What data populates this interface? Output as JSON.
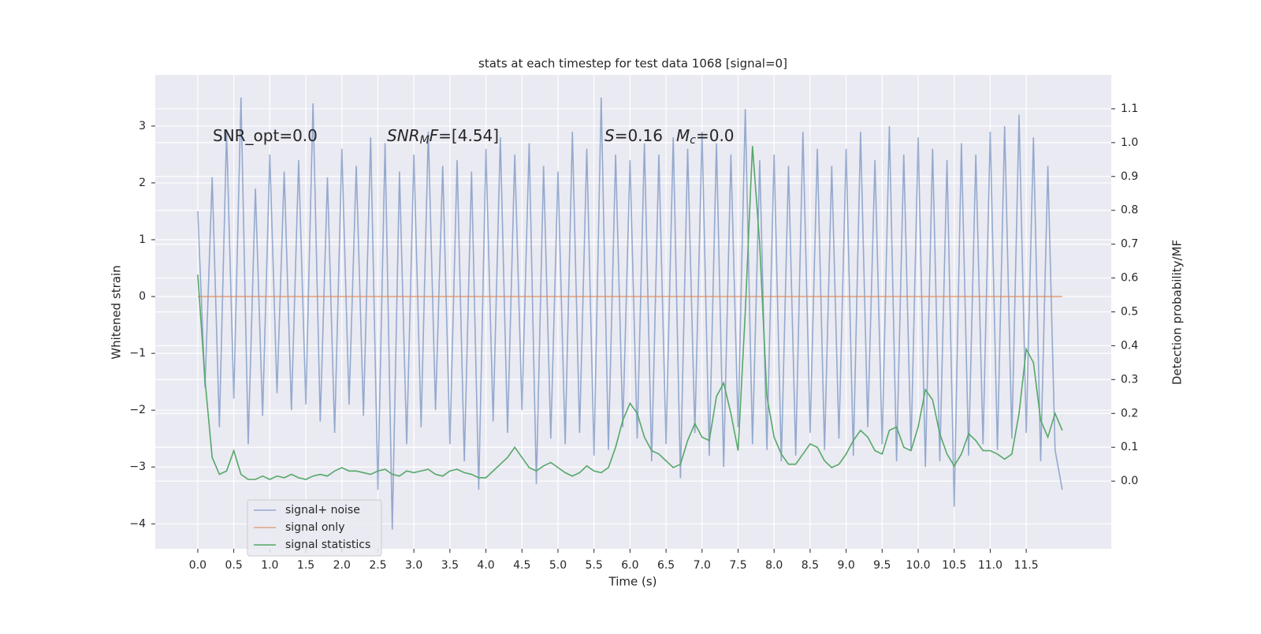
{
  "chart_data": {
    "type": "line",
    "title": "stats at each timestep for test data 1068 [signal=0]",
    "x_label": "Time (s)",
    "y_label": "Whitened strain",
    "y2_label": "Detection probability/MF",
    "annotations": [
      [
        {
          "text": "SNR_opt=0.0"
        }
      ],
      [
        {
          "text": "SNR",
          "italic": true
        },
        {
          "text": "M",
          "italic": true,
          "sub": true
        },
        {
          "text": "F",
          "italic": true
        },
        {
          "text": "=[4.54]"
        }
      ],
      [
        {
          "text": "S",
          "italic": true
        },
        {
          "text": "=0.16"
        }
      ],
      [
        {
          "text": "M",
          "italic": true
        },
        {
          "text": "c",
          "italic": true,
          "sub": true
        },
        {
          "text": "=0.0"
        }
      ]
    ],
    "x": [
      0,
      0.1,
      0.2,
      0.3,
      0.4,
      0.5,
      0.6,
      0.7,
      0.8,
      0.9,
      1,
      1.1,
      1.2,
      1.3,
      1.4,
      1.5,
      1.6,
      1.7,
      1.8,
      1.9,
      2,
      2.1,
      2.2,
      2.3,
      2.4,
      2.5,
      2.6,
      2.7,
      2.8,
      2.9,
      3,
      3.1,
      3.2,
      3.3,
      3.4,
      3.5,
      3.6,
      3.7,
      3.8,
      3.9,
      4,
      4.1,
      4.2,
      4.3,
      4.4,
      4.5,
      4.6,
      4.7,
      4.8,
      4.9,
      5,
      5.1,
      5.2,
      5.3,
      5.4,
      5.5,
      5.6,
      5.7,
      5.8,
      5.9,
      6,
      6.1,
      6.2,
      6.3,
      6.4,
      6.5,
      6.6,
      6.7,
      6.8,
      6.9,
      7,
      7.1,
      7.2,
      7.3,
      7.4,
      7.5,
      7.6,
      7.7,
      7.8,
      7.9,
      8,
      8.1,
      8.2,
      8.3,
      8.4,
      8.5,
      8.6,
      8.7,
      8.8,
      8.9,
      9,
      9.1,
      9.2,
      9.3,
      9.4,
      9.5,
      9.6,
      9.7,
      9.8,
      9.9,
      10,
      10.1,
      10.2,
      10.3,
      10.4,
      10.5,
      10.6,
      10.7,
      10.8,
      10.9,
      11,
      11.1,
      11.2,
      11.3,
      11.4,
      11.5,
      11.6,
      11.7,
      11.8,
      11.9,
      12
    ],
    "series": [
      {
        "name": "signal+ noise",
        "color": "#4c72b0",
        "opacity": 0.55,
        "values": [
          1.5,
          -1.6,
          2.1,
          -2.3,
          2.9,
          -1.8,
          3.5,
          -2.6,
          1.9,
          -2.1,
          2.5,
          -1.7,
          2.2,
          -2.0,
          2.4,
          -1.9,
          3.4,
          -2.2,
          2.1,
          -2.4,
          2.6,
          -1.9,
          2.3,
          -2.1,
          2.8,
          -3.4,
          2.7,
          -4.1,
          2.2,
          -2.6,
          2.5,
          -2.3,
          2.9,
          -2.0,
          2.3,
          -2.6,
          2.4,
          -2.9,
          2.2,
          -3.4,
          2.6,
          -2.2,
          2.8,
          -2.4,
          2.5,
          -2.0,
          2.7,
          -3.3,
          2.3,
          -2.5,
          2.2,
          -2.6,
          2.9,
          -2.4,
          2.6,
          -2.8,
          3.5,
          -2.7,
          2.5,
          -2.3,
          2.4,
          -2.5,
          2.7,
          -2.9,
          2.5,
          -2.6,
          2.8,
          -3.2,
          2.6,
          -2.4,
          2.9,
          -2.8,
          2.7,
          -3.0,
          2.5,
          -2.3,
          3.3,
          -2.6,
          2.4,
          -2.7,
          2.5,
          -2.9,
          2.3,
          -2.8,
          2.9,
          -2.4,
          2.6,
          -2.7,
          2.3,
          -2.5,
          2.6,
          -2.8,
          2.9,
          -2.3,
          2.4,
          -2.6,
          3.0,
          -2.9,
          2.5,
          -2.7,
          2.8,
          -3.0,
          2.6,
          -2.9,
          2.4,
          -3.7,
          2.7,
          -2.8,
          2.5,
          -2.6,
          2.9,
          -2.7,
          3.0,
          -2.5,
          3.2,
          -2.4,
          2.8,
          -2.9,
          2.3,
          -2.7,
          -3.4
        ]
      },
      {
        "name": "signal only",
        "color": "#dd8452",
        "opacity": 0.7,
        "values": [
          0,
          0,
          0,
          0,
          0,
          0,
          0,
          0,
          0,
          0,
          0,
          0,
          0,
          0,
          0,
          0,
          0,
          0,
          0,
          0,
          0,
          0,
          0,
          0,
          0,
          0,
          0,
          0,
          0,
          0,
          0,
          0,
          0,
          0,
          0,
          0,
          0,
          0,
          0,
          0,
          0,
          0,
          0,
          0,
          0,
          0,
          0,
          0,
          0,
          0,
          0,
          0,
          0,
          0,
          0,
          0,
          0,
          0,
          0,
          0,
          0,
          0,
          0,
          0,
          0,
          0,
          0,
          0,
          0,
          0,
          0,
          0,
          0,
          0,
          0,
          0,
          0,
          0,
          0,
          0,
          0,
          0,
          0,
          0,
          0,
          0,
          0,
          0,
          0,
          0,
          0,
          0,
          0,
          0,
          0,
          0,
          0,
          0,
          0,
          0,
          0,
          0,
          0,
          0,
          0,
          0,
          0,
          0,
          0,
          0,
          0,
          0,
          0,
          0,
          0,
          0,
          0,
          0,
          0,
          0,
          0
        ]
      },
      {
        "name": "signal statistics",
        "color": "#55a868",
        "opacity": 1,
        "axis": "y2",
        "values": [
          0.61,
          0.3,
          0.07,
          0.02,
          0.03,
          0.09,
          0.02,
          0.005,
          0.005,
          0.015,
          0.005,
          0.015,
          0.01,
          0.02,
          0.01,
          0.005,
          0.015,
          0.02,
          0.015,
          0.03,
          0.04,
          0.03,
          0.03,
          0.025,
          0.02,
          0.03,
          0.035,
          0.02,
          0.015,
          0.03,
          0.025,
          0.03,
          0.035,
          0.02,
          0.015,
          0.03,
          0.035,
          0.025,
          0.02,
          0.01,
          0.01,
          0.03,
          0.05,
          0.07,
          0.1,
          0.07,
          0.04,
          0.03,
          0.045,
          0.055,
          0.04,
          0.025,
          0.015,
          0.025,
          0.045,
          0.03,
          0.025,
          0.04,
          0.1,
          0.18,
          0.23,
          0.2,
          0.13,
          0.09,
          0.08,
          0.06,
          0.04,
          0.05,
          0.12,
          0.17,
          0.13,
          0.12,
          0.25,
          0.29,
          0.2,
          0.09,
          0.5,
          0.99,
          0.7,
          0.25,
          0.13,
          0.08,
          0.05,
          0.05,
          0.08,
          0.11,
          0.1,
          0.06,
          0.04,
          0.05,
          0.08,
          0.12,
          0.15,
          0.13,
          0.09,
          0.08,
          0.15,
          0.16,
          0.1,
          0.09,
          0.16,
          0.27,
          0.24,
          0.14,
          0.08,
          0.045,
          0.08,
          0.14,
          0.12,
          0.09,
          0.09,
          0.08,
          0.065,
          0.08,
          0.2,
          0.39,
          0.35,
          0.18,
          0.13,
          0.2,
          0.15
        ]
      }
    ],
    "xlim": [
      -0.59,
      12.68
    ],
    "xticks": [
      {
        "value": 0,
        "label": "0.0"
      },
      0.5,
      {
        "value": 1,
        "label": "1.0"
      },
      1.5,
      {
        "value": 2,
        "label": "2.0"
      },
      2.5,
      {
        "value": 3,
        "label": "3.0"
      },
      3.5,
      {
        "value": 4,
        "label": "4.0"
      },
      4.5,
      {
        "value": 5,
        "label": "5.0"
      },
      5.5,
      {
        "value": 6,
        "label": "6.0"
      },
      6.5,
      {
        "value": 7,
        "label": "7.0"
      },
      7.5,
      {
        "value": 8,
        "label": "8.0"
      },
      8.5,
      {
        "value": 9,
        "label": "9.0"
      },
      9.5,
      {
        "value": 10,
        "label": "10.0"
      },
      10.5,
      {
        "value": 11,
        "label": "11.0"
      },
      11.5
    ],
    "ylim": [
      -4.44,
      3.9
    ],
    "yticks": [
      {
        "value": -4,
        "label": "−4"
      },
      {
        "value": -3,
        "label": "−3"
      },
      {
        "value": -2,
        "label": "−2"
      },
      {
        "value": -1,
        "label": "−1"
      },
      0,
      1,
      2,
      3
    ],
    "y2lim": [
      -0.2,
      1.2
    ],
    "y2ticks": [
      {
        "value": 0,
        "label": "0.0"
      },
      0.1,
      0.2,
      0.3,
      0.4,
      0.5,
      0.6,
      0.7,
      0.8,
      0.9,
      {
        "value": 1,
        "label": "1.0"
      },
      1.1
    ],
    "grid": true,
    "legend": "lower left",
    "background": "#eaeaf2"
  }
}
